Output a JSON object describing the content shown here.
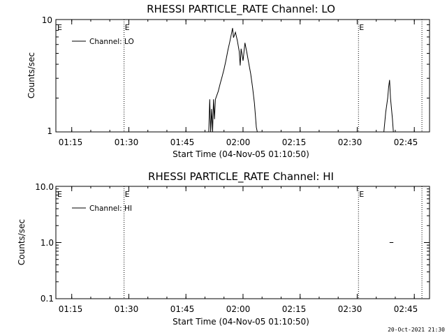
{
  "timestamp": "20-Oct-2021 21:30",
  "x_tick_labels": [
    "01:15",
    "01:30",
    "01:45",
    "02:00",
    "02:15",
    "02:30",
    "02:45"
  ],
  "chart_data": [
    {
      "type": "line",
      "title": "RHESSI PARTICLE_RATE Channel: LO",
      "xlabel": "Start Time (04-Nov-05 01:10:50)",
      "ylabel": "Counts/sec",
      "yscale": "log",
      "ylim": [
        1,
        10
      ],
      "y_tick_labels": [
        "1",
        "10"
      ],
      "x_ticks": [
        "01:15",
        "01:30",
        "01:45",
        "02:00",
        "02:15",
        "02:30",
        "02:45"
      ],
      "xlim": [
        "01:10:50",
        "02:49:00"
      ],
      "grid": false,
      "legend": {
        "position": "top-left",
        "entries": [
          "Channel: LO"
        ]
      },
      "vertical_markers": [
        {
          "time": "01:28:45",
          "label": "E"
        },
        {
          "time": "02:30:20",
          "label": "E"
        },
        {
          "time": "02:47:00",
          "label": ""
        }
      ],
      "series": [
        {
          "name": "Channel: LO",
          "points": [
            [
              "01:10:50",
              1
            ],
            [
              "01:51:00",
              1
            ],
            [
              "01:51:15",
              1.95
            ],
            [
              "01:51:30",
              1
            ],
            [
              "01:51:45",
              1.6
            ],
            [
              "01:52:00",
              1
            ],
            [
              "01:52:15",
              1.95
            ],
            [
              "01:52:30",
              1.3
            ],
            [
              "01:52:45",
              1.95
            ],
            [
              "01:53:30",
              2.3
            ],
            [
              "01:54:00",
              2.7
            ],
            [
              "01:54:30",
              3.1
            ],
            [
              "01:55:00",
              3.6
            ],
            [
              "01:55:30",
              4.3
            ],
            [
              "01:56:00",
              5.3
            ],
            [
              "01:56:30",
              6.3
            ],
            [
              "01:57:00",
              7.6
            ],
            [
              "01:57:15",
              8.4
            ],
            [
              "01:57:30",
              6.9
            ],
            [
              "01:58:00",
              7.7
            ],
            [
              "01:58:30",
              6.5
            ],
            [
              "01:59:00",
              5.2
            ],
            [
              "01:59:15",
              3.9
            ],
            [
              "01:59:30",
              5.5
            ],
            [
              "02:00:00",
              4.3
            ],
            [
              "02:00:30",
              6.2
            ],
            [
              "02:01:00",
              5.1
            ],
            [
              "02:01:30",
              4.1
            ],
            [
              "02:02:00",
              3.3
            ],
            [
              "02:02:30",
              2.5
            ],
            [
              "02:03:00",
              1.8
            ],
            [
              "02:03:30",
              1.1
            ],
            [
              "02:03:45",
              1
            ],
            [
              "02:37:00",
              1
            ],
            [
              "02:37:30",
              1.5
            ],
            [
              "02:38:00",
              2.0
            ],
            [
              "02:38:15",
              2.5
            ],
            [
              "02:38:30",
              2.9
            ],
            [
              "02:38:45",
              2.0
            ],
            [
              "02:39:15",
              1.3
            ],
            [
              "02:39:30",
              1
            ],
            [
              "02:49:00",
              1
            ]
          ]
        }
      ]
    },
    {
      "type": "line",
      "title": "RHESSI PARTICLE_RATE Channel: HI",
      "xlabel": "Start Time (04-Nov-05 01:10:50)",
      "ylabel": "Counts/sec",
      "yscale": "log",
      "ylim": [
        0.1,
        10
      ],
      "y_tick_labels": [
        "0.1",
        "1.0",
        "10.0"
      ],
      "x_ticks": [
        "01:15",
        "01:30",
        "01:45",
        "02:00",
        "02:15",
        "02:30",
        "02:45"
      ],
      "xlim": [
        "01:10:50",
        "02:49:00"
      ],
      "grid": false,
      "legend": {
        "position": "top-left",
        "entries": [
          "Channel: HI"
        ]
      },
      "vertical_markers": [
        {
          "time": "01:28:45",
          "label": "E"
        },
        {
          "time": "02:30:20",
          "label": "E"
        },
        {
          "time": "02:47:00",
          "label": ""
        }
      ],
      "series": [
        {
          "name": "Channel: HI",
          "points": [
            [
              "02:38:30",
              1
            ],
            [
              "02:39:30",
              1
            ]
          ]
        }
      ]
    }
  ]
}
